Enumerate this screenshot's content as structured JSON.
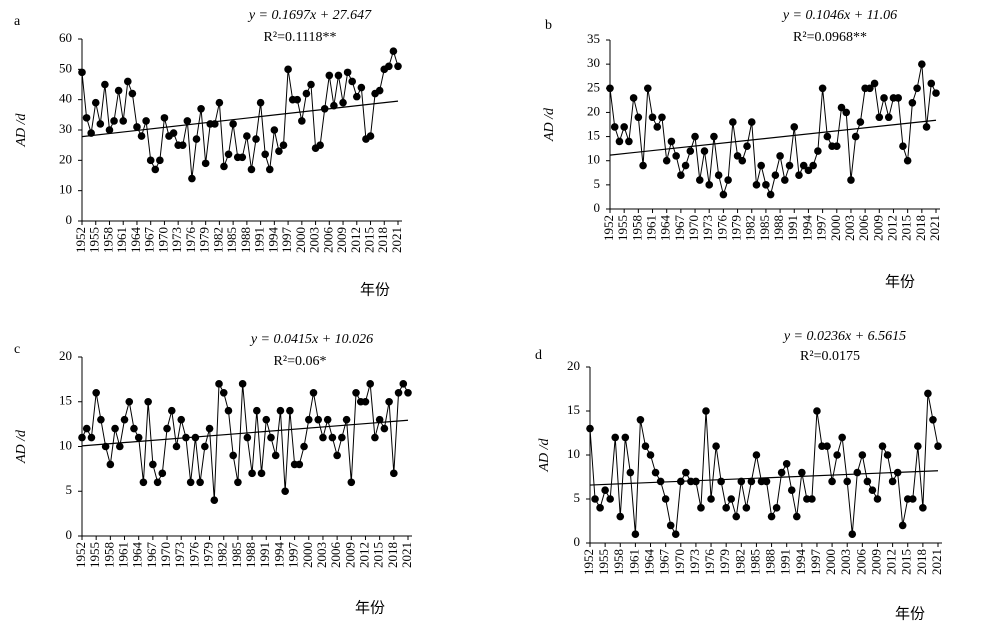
{
  "chart_data": [
    {
      "type": "line",
      "panel": "a",
      "equation": "y = 0.1697x + 27.647",
      "r_squared": "R²=0.1118**",
      "trend": {
        "slope": 0.1697,
        "intercept": 27.647
      },
      "x_label": "年份",
      "y_label": "AD /d",
      "color": "#000000",
      "categories": [
        "1952",
        null,
        null,
        "1955",
        null,
        null,
        "1958",
        null,
        null,
        "1961",
        null,
        null,
        "1964",
        null,
        null,
        "1967",
        null,
        null,
        "1970",
        null,
        null,
        "1973",
        null,
        null,
        "1976",
        null,
        null,
        "1979",
        null,
        null,
        "1982",
        null,
        null,
        "1985",
        null,
        null,
        "1988",
        null,
        null,
        "1991",
        null,
        null,
        "1994",
        null,
        null,
        "1997",
        null,
        null,
        "2000",
        null,
        null,
        "2003",
        null,
        null,
        "2006",
        null,
        null,
        "2009",
        null,
        null,
        "2012",
        null,
        null,
        "2015",
        null,
        null,
        "2018",
        null,
        null,
        "2021"
      ],
      "values": [
        49,
        34,
        29,
        39,
        32,
        45,
        30,
        33,
        43,
        33,
        46,
        42,
        31,
        28,
        33,
        20,
        17,
        20,
        34,
        28,
        29,
        25,
        25,
        33,
        14,
        27,
        37,
        19,
        32,
        32,
        39,
        18,
        22,
        32,
        21,
        21,
        28,
        17,
        27,
        39,
        22,
        17,
        30,
        23,
        25,
        50,
        40,
        40,
        33,
        42,
        45,
        24,
        25,
        37,
        48,
        38,
        48,
        39,
        49,
        46,
        41,
        44,
        27,
        28,
        42,
        43,
        50,
        51,
        56,
        51
      ],
      "ylim": [
        0,
        60
      ],
      "yticks": [
        0,
        10,
        20,
        30,
        40,
        50,
        60
      ]
    },
    {
      "type": "line",
      "panel": "b",
      "equation": "y = 0.1046x + 11.06",
      "r_squared": "R²=0.0968**",
      "trend": {
        "slope": 0.1046,
        "intercept": 11.06
      },
      "x_label": "年份",
      "y_label": "AD /d",
      "color": "#000000",
      "categories": [
        "1952",
        null,
        null,
        "1955",
        null,
        null,
        "1958",
        null,
        null,
        "1961",
        null,
        null,
        "1964",
        null,
        null,
        "1967",
        null,
        null,
        "1970",
        null,
        null,
        "1973",
        null,
        null,
        "1976",
        null,
        null,
        "1979",
        null,
        null,
        "1982",
        null,
        null,
        "1985",
        null,
        null,
        "1988",
        null,
        null,
        "1991",
        null,
        null,
        "1994",
        null,
        null,
        "1997",
        null,
        null,
        "2000",
        null,
        null,
        "2003",
        null,
        null,
        "2006",
        null,
        null,
        "2009",
        null,
        null,
        "2012",
        null,
        null,
        "2015",
        null,
        null,
        "2018",
        null,
        null,
        "2021"
      ],
      "values": [
        25,
        17,
        14,
        17,
        14,
        23,
        19,
        9,
        25,
        19,
        17,
        19,
        10,
        14,
        11,
        7,
        9,
        12,
        15,
        6,
        12,
        5,
        15,
        7,
        3,
        6,
        18,
        11,
        10,
        13,
        18,
        5,
        9,
        5,
        3,
        7,
        11,
        6,
        9,
        17,
        7,
        9,
        8,
        9,
        12,
        25,
        15,
        13,
        13,
        21,
        20,
        6,
        15,
        18,
        25,
        25,
        26,
        19,
        23,
        19,
        23,
        23,
        13,
        10,
        22,
        25,
        30,
        17,
        26,
        24
      ],
      "ylim": [
        0,
        35
      ],
      "yticks": [
        0,
        5,
        10,
        15,
        20,
        25,
        30,
        35
      ]
    },
    {
      "type": "line",
      "panel": "c",
      "equation": "y = 0.0415x + 10.026",
      "r_squared": "R²=0.06*",
      "trend": {
        "slope": 0.0415,
        "intercept": 10.026
      },
      "x_label": "年份",
      "y_label": "AD /d",
      "color": "#000000",
      "categories": [
        "1952",
        null,
        null,
        "1955",
        null,
        null,
        "1958",
        null,
        null,
        "1961",
        null,
        null,
        "1964",
        null,
        null,
        "1967",
        null,
        null,
        "1970",
        null,
        null,
        "1973",
        null,
        null,
        "1976",
        null,
        null,
        "1979",
        null,
        null,
        "1982",
        null,
        null,
        "1985",
        null,
        null,
        "1988",
        null,
        null,
        "1991",
        null,
        null,
        "1994",
        null,
        null,
        "1997",
        null,
        null,
        "2000",
        null,
        null,
        "2003",
        null,
        null,
        "2006",
        null,
        null,
        "2009",
        null,
        null,
        "2012",
        null,
        null,
        "2015",
        null,
        null,
        "2018",
        null,
        null,
        "2021"
      ],
      "values": [
        11,
        12,
        11,
        16,
        13,
        10,
        8,
        12,
        10,
        13,
        15,
        12,
        11,
        6,
        15,
        8,
        6,
        7,
        12,
        14,
        10,
        13,
        11,
        6,
        11,
        6,
        10,
        12,
        4,
        17,
        16,
        14,
        9,
        6,
        17,
        11,
        7,
        14,
        7,
        13,
        11,
        9,
        14,
        5,
        14,
        8,
        8,
        10,
        13,
        16,
        13,
        11,
        13,
        11,
        9,
        11,
        13,
        6,
        16,
        15,
        15,
        17,
        11,
        13,
        12,
        15,
        7,
        16,
        17,
        16
      ],
      "ylim": [
        0,
        20
      ],
      "yticks": [
        0,
        5,
        10,
        15,
        20
      ]
    },
    {
      "type": "line",
      "panel": "d",
      "equation": "y = 0.0236x + 6.5615",
      "r_squared": "R²=0.0175",
      "trend": {
        "slope": 0.0236,
        "intercept": 6.5615
      },
      "x_label": "年份",
      "y_label": "AD /d",
      "color": "#000000",
      "categories": [
        "1952",
        null,
        null,
        "1955",
        null,
        null,
        "1958",
        null,
        null,
        "1961",
        null,
        null,
        "1964",
        null,
        null,
        "1967",
        null,
        null,
        "1970",
        null,
        null,
        "1973",
        null,
        null,
        "1976",
        null,
        null,
        "1979",
        null,
        null,
        "1982",
        null,
        null,
        "1985",
        null,
        null,
        "1988",
        null,
        null,
        "1991",
        null,
        null,
        "1994",
        null,
        null,
        "1997",
        null,
        null,
        "2000",
        null,
        null,
        "2003",
        null,
        null,
        "2006",
        null,
        null,
        "2009",
        null,
        null,
        "2012",
        null,
        null,
        "2015",
        null,
        null,
        "2018",
        null,
        null,
        "2021"
      ],
      "values": [
        13,
        5,
        4,
        6,
        5,
        12,
        3,
        12,
        8,
        1,
        14,
        11,
        10,
        8,
        7,
        5,
        2,
        1,
        7,
        8,
        7,
        7,
        4,
        15,
        5,
        11,
        7,
        4,
        5,
        3,
        7,
        4,
        7,
        10,
        7,
        7,
        3,
        4,
        8,
        9,
        6,
        3,
        8,
        5,
        5,
        15,
        11,
        11,
        7,
        10,
        12,
        7,
        1,
        8,
        10,
        7,
        6,
        5,
        11,
        10,
        7,
        8,
        2,
        5,
        5,
        11,
        4,
        17,
        14,
        11
      ],
      "ylim": [
        0,
        20
      ],
      "yticks": [
        0,
        5,
        10,
        15,
        20
      ]
    }
  ]
}
